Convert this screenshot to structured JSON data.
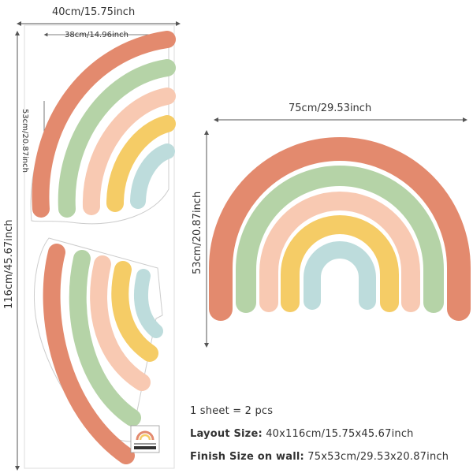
{
  "dimensions": {
    "sheet_width": "40cm/15.75inch",
    "sheet_height": "116cm/45.67inch",
    "piece_width": "38cm/14.96inch",
    "piece_height": "53cm/20.87inch",
    "assembled_width": "75cm/29.53inch",
    "assembled_height": "53cm/20.87inch"
  },
  "info": {
    "sheets_line": "1 sheet = 2 pcs",
    "layout_label": "Layout Size:",
    "layout_value": "40x116cm/15.75x45.67inch",
    "finish_label": "Finish Size on wall:",
    "finish_value": "75x53cm/29.53x20.87inch"
  },
  "colors": {
    "band1": "#e38a6e",
    "band2": "#b5d3a7",
    "band3": "#f8c9b2",
    "band4": "#f5cc66",
    "band5": "#bddcdc",
    "line": "#555555",
    "sheet_border": "#cccccc"
  }
}
